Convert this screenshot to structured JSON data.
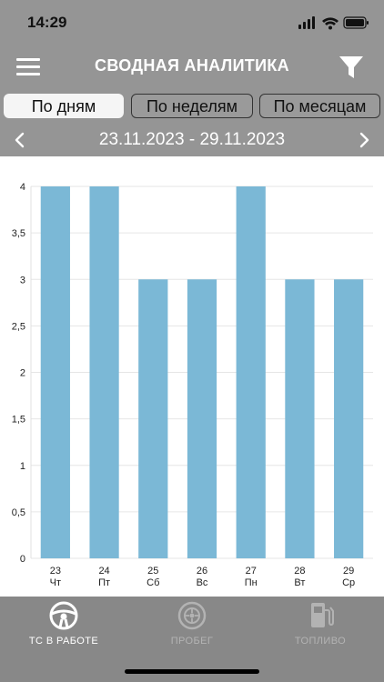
{
  "status_bar": {
    "time": "14:29"
  },
  "navbar": {
    "title": "СВОДНАЯ АНАЛИТИКА",
    "menu_icon": "hamburger-menu-icon",
    "filter_icon": "filter-funnel-icon"
  },
  "segments": [
    {
      "label": "По дням",
      "active": true
    },
    {
      "label": "По неделям",
      "active": false
    },
    {
      "label": "По месяцам",
      "active": false
    }
  ],
  "date_range": {
    "text": "23.11.2023 - 29.11.2023"
  },
  "chart_data": {
    "type": "bar",
    "categories": [
      "23",
      "24",
      "25",
      "26",
      "27",
      "28",
      "29"
    ],
    "weekdays": [
      "Чт",
      "Пт",
      "Сб",
      "Вс",
      "Пн",
      "Вт",
      "Ср"
    ],
    "values": [
      4,
      4,
      3,
      3,
      4,
      3,
      3
    ],
    "y_ticks": [
      "0",
      "0,5",
      "1",
      "1,5",
      "2",
      "2,5",
      "3",
      "3,5",
      "4"
    ],
    "ylim": [
      0,
      4
    ],
    "bar_color": "#7bb8d6",
    "grid": true
  },
  "tabs": [
    {
      "label": "ТС В РАБОТЕ",
      "icon": "steering-wheel-icon",
      "active": true
    },
    {
      "label": "ПРОБЕГ",
      "icon": "wheel-tire-icon",
      "active": false
    },
    {
      "label": "ТОПЛИВО",
      "icon": "fuel-pump-icon",
      "active": false
    }
  ],
  "colors": {
    "header_bg": "#959595",
    "tabbar_bg": "#888888",
    "bar": "#7bb8d6",
    "active_tab_text": "#ffffff",
    "inactive_tab_text": "#b3b3b3"
  }
}
